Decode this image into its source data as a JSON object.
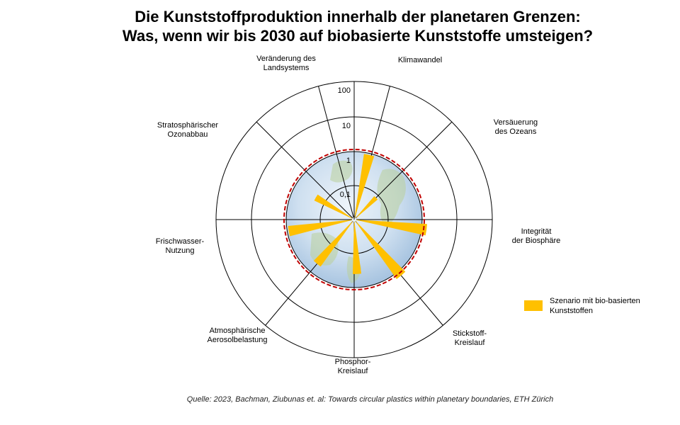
{
  "title": {
    "line1": "Die Kunststoffproduktion innerhalb der planetaren Grenzen:",
    "line2": "Was, wenn wir bis 2030 auf biobasierte Kunststoffe umsteigen?"
  },
  "legend": {
    "label": "Szenario mit bio-basierten Kunststoffen"
  },
  "source": "Quelle: 2023, Bachman, Ziubunas et. al: Towards circular plastics within planetary boundaries, ETH Zürich",
  "colors": {
    "bar": "#ffc000",
    "boundary": "#c00000",
    "grid": "#000000",
    "safe_zone": "#c9dcef"
  },
  "chart_data": {
    "type": "polar-bar",
    "scale": "log",
    "title": "Die Kunststoffproduktion innerhalb der planetaren Grenzen: Was, wenn wir bis 2030 auf biobasierte Kunststoffe umsteigen?",
    "radial_ticks": [
      "0,1",
      "1",
      "10",
      "100"
    ],
    "radial_tick_values": [
      0.1,
      1,
      10,
      100
    ],
    "planetary_boundary": 1,
    "categories": [
      {
        "label_lines": [
          "Klimawandel"
        ],
        "angle_deg": 15
      },
      {
        "label_lines": [
          "Versäuerung",
          "des Ozeans"
        ],
        "angle_deg": 45
      },
      {
        "label_lines": [
          "Integrität",
          "der Biosphäre"
        ],
        "angle_deg": 90
      },
      {
        "label_lines": [
          "Stickstoff-",
          "Kreislauf"
        ],
        "angle_deg": 140
      },
      {
        "label_lines": [
          "Phosphor-",
          "Kreislauf"
        ],
        "angle_deg": 180
      },
      {
        "label_lines": [
          "Atmosphärische",
          "Aerosolbelastung"
        ],
        "angle_deg": 220
      },
      {
        "label_lines": [
          "Frischwasser-",
          "Nutzung"
        ],
        "angle_deg": 270
      },
      {
        "label_lines": [
          "Stratosphärischer",
          "Ozonabbau"
        ],
        "angle_deg": 315
      },
      {
        "label_lines": [
          "Veränderung des",
          "Landsystems"
        ],
        "angle_deg": 345
      }
    ],
    "series": [
      {
        "name": "Szenario mit bio-basierten Kunststoffen",
        "bars": [
          {
            "category": "Klimawandel",
            "angle_deg": 13,
            "value": 0.9
          },
          {
            "category": "Versäuerung des Ozeans",
            "angle_deg": 45,
            "value": 0.08
          },
          {
            "category": "Integrität der Biosphäre",
            "angle_deg": 98,
            "value": 1.4
          },
          {
            "category": "Stickstoff-Kreislauf",
            "angle_deg": 140,
            "value": 1.4
          },
          {
            "category": "Phosphor-Kreislauf",
            "angle_deg": 177,
            "value": 0.4
          },
          {
            "category": "Atmosphärische Aerosolbelastung",
            "angle_deg": 220,
            "value": 0.5
          },
          {
            "category": "Frischwasser-Nutzung",
            "angle_deg": 260,
            "value": 0.9
          },
          {
            "category": "Stratosphärischer Ozonabbau",
            "angle_deg": 300,
            "value": 0.2
          }
        ]
      }
    ]
  }
}
